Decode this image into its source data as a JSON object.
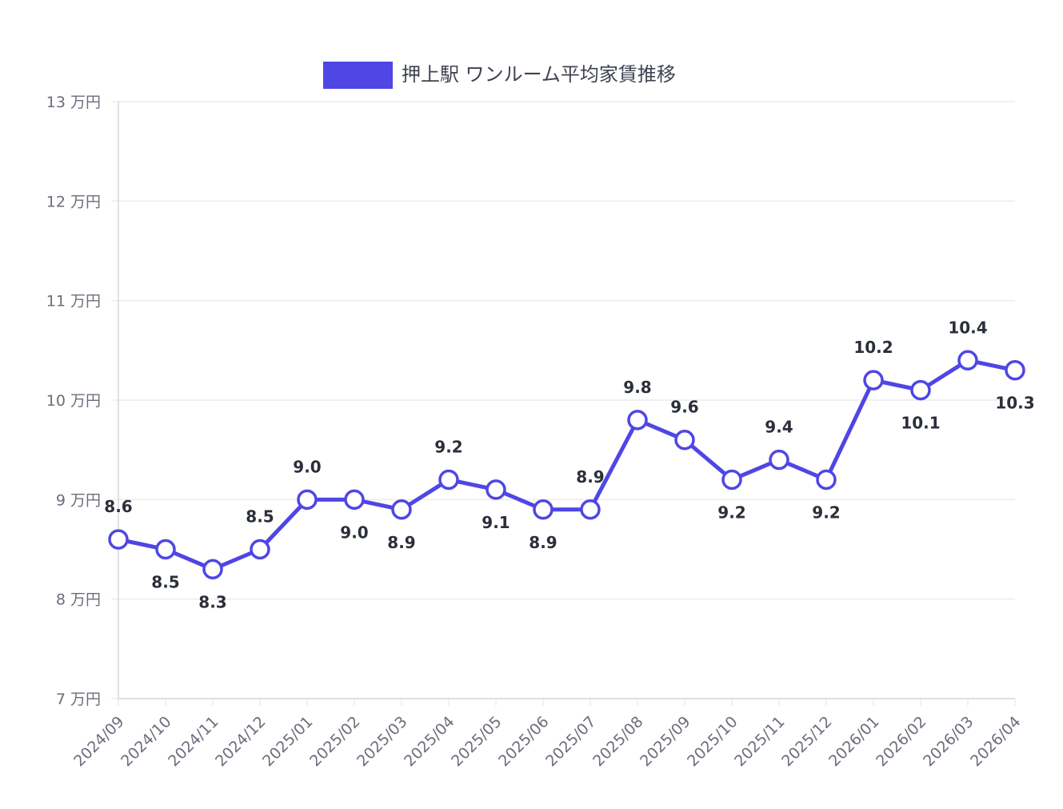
{
  "chart_data": {
    "type": "line",
    "title": "",
    "legend": {
      "position": "top",
      "entries": [
        "押上駅 ワンルーム平均家賃推移"
      ]
    },
    "categories": [
      "2024/09",
      "2024/10",
      "2024/11",
      "2024/12",
      "2025/01",
      "2025/02",
      "2025/03",
      "2025/04",
      "2025/05",
      "2025/06",
      "2025/07",
      "2025/08",
      "2025/09",
      "2025/10",
      "2025/11",
      "2025/12",
      "2026/01",
      "2026/02",
      "2026/03",
      "2026/04"
    ],
    "series": [
      {
        "name": "押上駅 ワンルーム平均家賃推移",
        "color": "#4f46e5",
        "values": [
          8.6,
          8.5,
          8.3,
          8.5,
          9.0,
          9.0,
          8.9,
          9.2,
          9.1,
          8.9,
          8.9,
          9.8,
          9.6,
          9.2,
          9.4,
          9.2,
          10.2,
          10.1,
          10.4,
          10.3
        ],
        "labels": [
          "8.6",
          "8.5",
          "8.3",
          "8.5",
          "9.0",
          "9.0",
          "8.9",
          "9.2",
          "9.1",
          "8.9",
          "8.9",
          "9.8",
          "9.6",
          "9.2",
          "9.4",
          "9.2",
          "10.2",
          "10.1",
          "10.4",
          "10.3"
        ]
      }
    ],
    "ylim": [
      7,
      13
    ],
    "yticks": [
      7,
      8,
      9,
      10,
      11,
      12,
      13
    ],
    "ytick_suffix": " 万円",
    "xlabel": "",
    "ylabel": "",
    "grid": true
  }
}
